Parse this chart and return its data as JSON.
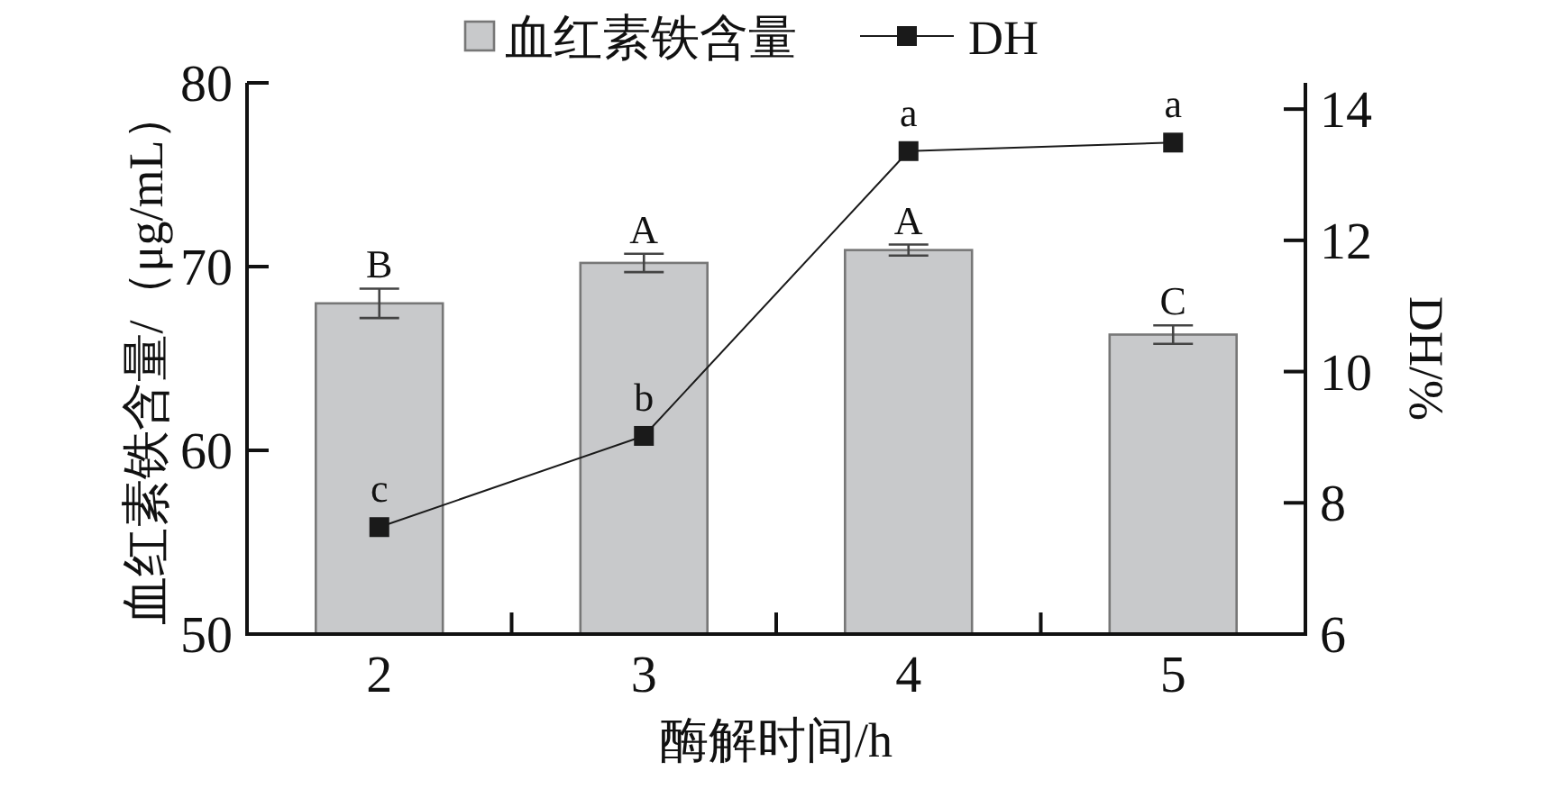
{
  "chart_data": {
    "type": "bar",
    "xlabel": "酶解时间/h",
    "ylabel": "血红素铁含量/（μg/mL）",
    "y2label": "DH/%",
    "categories": [
      "2",
      "3",
      "4",
      "5"
    ],
    "series": [
      {
        "name": "血红素铁含量",
        "color": "#c8c9cb",
        "values": [
          68.0,
          70.2,
          70.9,
          66.3
        ],
        "errors": [
          0.8,
          0.5,
          0.3,
          0.5
        ]
      },
      {
        "name": "DH",
        "type": "line",
        "axis": "y2",
        "color": "#1a1a1a",
        "values": [
          7.63,
          9.02,
          13.36,
          13.49
        ]
      }
    ],
    "ylim": [
      50,
      80
    ],
    "yticks": [
      50,
      60,
      70,
      80
    ],
    "y2lim": [
      6,
      14.4
    ],
    "y2ticks": [
      6,
      8,
      10,
      12,
      14
    ],
    "marker": "square",
    "line_style": "solid",
    "grid": false,
    "legend": "top",
    "annotations": [
      {
        "text": "B",
        "x": "2",
        "y": 68.0
      },
      {
        "text": "A",
        "x": "3",
        "y": 70.2
      },
      {
        "text": "A",
        "x": "4",
        "y": 70.9
      },
      {
        "text": "C",
        "x": "5",
        "y": 66.3
      },
      "c",
      "b",
      "a",
      "a"
    ]
  }
}
